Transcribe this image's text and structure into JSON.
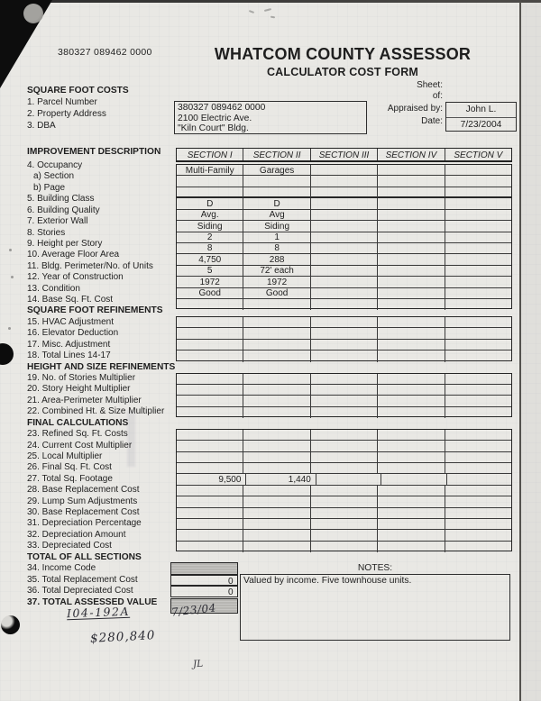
{
  "header": {
    "corner_id": "380327 089462 0000",
    "title": "WHATCOM COUNTY ASSESSOR",
    "subtitle": "CALCULATOR COST FORM",
    "sheet_label": "Sheet:",
    "of_label": "of:",
    "appraised_by_label": "Appraised by:",
    "date_label": "Date:",
    "appraised_by_value": "John L.",
    "date_value": "7/23/2004",
    "property_box_lines": [
      "380327 089462 0000",
      "2100 Electric Ave.",
      "\"Kiln Court\" Bldg."
    ]
  },
  "left_column": {
    "top_lines": [
      {
        "text": "SQUARE FOOT COSTS",
        "style": "header"
      },
      {
        "text": "1. Parcel Number"
      },
      {
        "text": "2. Property Address"
      },
      {
        "text": "3. DBA"
      }
    ],
    "body_lines": [
      {
        "text": "IMPROVEMENT DESCRIPTION",
        "style": "header"
      },
      {
        "text": "4. Occupancy"
      },
      {
        "text": "a) Section",
        "style": "indent"
      },
      {
        "text": "b) Page",
        "style": "indent"
      },
      {
        "text": "5. Building Class"
      },
      {
        "text": "6. Building Quality"
      },
      {
        "text": "7. Exterior Wall"
      },
      {
        "text": "8. Stories"
      },
      {
        "text": "9. Height per Story"
      },
      {
        "text": "10. Average Floor Area"
      },
      {
        "text": "11. Bldg. Perimeter/No. of Units"
      },
      {
        "text": "12. Year of Construction"
      },
      {
        "text": "13. Condition"
      },
      {
        "text": "14. Base Sq. Ft. Cost"
      },
      {
        "text": "SQUARE FOOT REFINEMENTS",
        "style": "header"
      },
      {
        "text": "15. HVAC Adjustment"
      },
      {
        "text": "16. Elevator Deduction"
      },
      {
        "text": "17. Misc. Adjustment"
      },
      {
        "text": "18. Total Lines 14-17"
      },
      {
        "text": "HEIGHT AND SIZE REFINEMENTS",
        "style": "header"
      },
      {
        "text": "19. No. of Stories Multiplier"
      },
      {
        "text": "20. Story Height Multiplier"
      },
      {
        "text": "21. Area-Perimeter Multiplier"
      },
      {
        "text": "22. Combined Ht. & Size Multiplier"
      },
      {
        "text": "FINAL CALCULATIONS",
        "style": "header"
      },
      {
        "text": "23. Refined Sq. Ft. Costs"
      },
      {
        "text": "24. Current Cost Multiplier"
      },
      {
        "text": "25. Local Multiplier"
      },
      {
        "text": "26. Final Sq. Ft. Cost"
      },
      {
        "text": "27. Total Sq. Footage"
      },
      {
        "text": "28. Base Replacement Cost"
      },
      {
        "text": "29. Lump Sum Adjustments"
      },
      {
        "text": "30. Base Replacement Cost"
      },
      {
        "text": "31. Depreciation Percentage"
      },
      {
        "text": "32. Depreciation Amount"
      },
      {
        "text": "33. Depreciated Cost"
      },
      {
        "text": "TOTAL OF ALL SECTIONS",
        "style": "header"
      },
      {
        "text": "34. Income Code"
      },
      {
        "text": "35. Total Replacement Cost"
      },
      {
        "text": "36. Total Depreciated Cost"
      },
      {
        "text": "37. TOTAL ASSESSED VALUE",
        "style": "header"
      }
    ]
  },
  "table": {
    "section_headers": [
      "SECTION I",
      "SECTION II",
      "SECTION III",
      "SECTION IV",
      "SECTION V"
    ],
    "groups": [
      {
        "name": "occupancy",
        "rows": [
          [
            "Multi-Family",
            "Garages",
            "",
            "",
            ""
          ],
          [
            "",
            "",
            "",
            "",
            ""
          ],
          [
            "",
            "",
            "",
            "",
            ""
          ]
        ]
      },
      {
        "name": "building-description",
        "rows": [
          [
            "D",
            "D",
            "",
            "",
            ""
          ],
          [
            "Avg.",
            "Avg",
            "",
            "",
            ""
          ],
          [
            "Siding",
            "Siding",
            "",
            "",
            ""
          ],
          [
            "2",
            "1",
            "",
            "",
            ""
          ],
          [
            "8",
            "8",
            "",
            "",
            ""
          ],
          [
            "4,750",
            "288",
            "",
            "",
            ""
          ],
          [
            "5",
            "72' each",
            "",
            "",
            ""
          ],
          [
            "1972",
            "1972",
            "",
            "",
            ""
          ],
          [
            "Good",
            "Good",
            "",
            "",
            ""
          ],
          [
            "",
            "",
            "",
            "",
            ""
          ]
        ]
      },
      {
        "name": "square-foot-refinements",
        "rows": [
          [
            "",
            "",
            "",
            "",
            ""
          ],
          [
            "",
            "",
            "",
            "",
            ""
          ],
          [
            "",
            "",
            "",
            "",
            ""
          ],
          [
            "",
            "",
            "",
            "",
            ""
          ]
        ]
      },
      {
        "name": "height-size-refinements",
        "rows": [
          [
            "",
            "",
            "",
            "",
            ""
          ],
          [
            "",
            "",
            "",
            "",
            ""
          ],
          [
            "",
            "",
            "",
            "",
            ""
          ],
          [
            "",
            "",
            "",
            "",
            ""
          ]
        ]
      },
      {
        "name": "final-calculations",
        "right_align_rows": [
          4
        ],
        "rows": [
          [
            "",
            "",
            "",
            "",
            ""
          ],
          [
            "",
            "",
            "",
            "",
            ""
          ],
          [
            "",
            "",
            "",
            "",
            ""
          ],
          [
            "",
            "",
            "",
            "",
            ""
          ],
          [
            "9,500",
            "1,440",
            "",
            "",
            ""
          ],
          [
            "",
            "",
            "",
            "",
            ""
          ],
          [
            "",
            "",
            "",
            "",
            ""
          ],
          [
            "",
            "",
            "",
            "",
            ""
          ],
          [
            "",
            "",
            "",
            "",
            ""
          ],
          [
            "",
            "",
            "",
            "",
            ""
          ],
          [
            "",
            "",
            "",
            "",
            ""
          ]
        ]
      }
    ]
  },
  "totals": {
    "income_code_value": "",
    "total_replacement_cost_value": "0",
    "total_depreciated_cost_value": "0",
    "assessed_value": ""
  },
  "notes": {
    "label": "NOTES:",
    "text": "Valued by income. Five townhouse units."
  },
  "handwriting": {
    "file_number": "I04-192A",
    "date": "7/23/04",
    "amount": "$280,840",
    "initials": "JL"
  }
}
